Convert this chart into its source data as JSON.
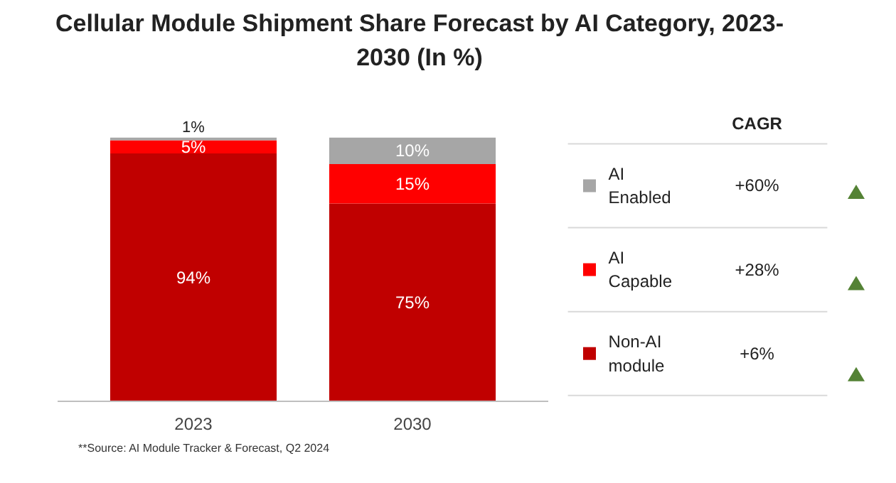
{
  "chart_data": {
    "type": "bar",
    "title": "Cellular Module Shipment Share Forecast by AI Category, 2023-2030 (In %)",
    "categories": [
      "2023",
      "2030"
    ],
    "stacked": true,
    "tick_labels": "x",
    "legend": "right",
    "data_labels": true,
    "series": [
      {
        "name": "Non-AI module",
        "color": "#c00000",
        "values": [
          94,
          75
        ],
        "value_labels": [
          "94%",
          "75%"
        ]
      },
      {
        "name": "AI Capable",
        "color": "#ff0000",
        "values": [
          5,
          15
        ],
        "value_labels": [
          "5%",
          "15%"
        ]
      },
      {
        "name": "AI Enabled",
        "color": "#a6a6a6",
        "values": [
          1,
          10
        ],
        "value_labels": [
          "1%",
          "10%"
        ]
      }
    ],
    "annotations": [
      "CAGR",
      "+6%",
      "+28%",
      "+60%",
      "**Source: AI Module Tracker & Forecast, Q2 2024"
    ]
  }
}
